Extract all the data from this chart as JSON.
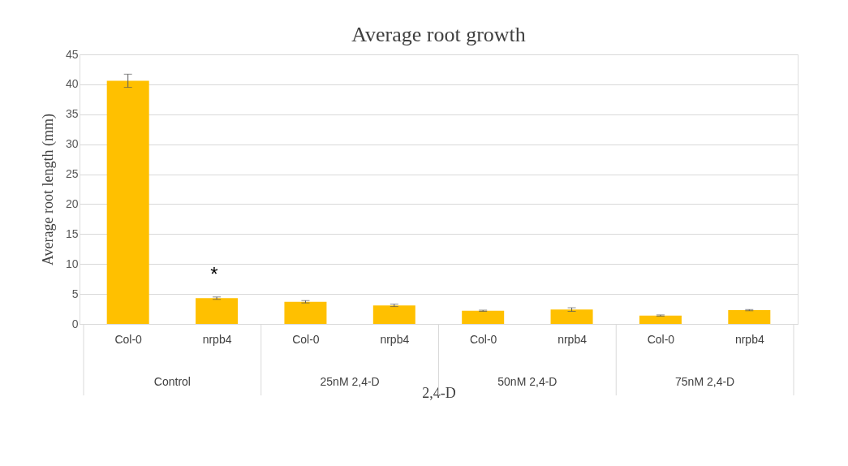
{
  "chart_data": {
    "type": "bar",
    "title": "Average root growth",
    "xlabel": "2,4-D",
    "ylabel": "Average root length (mm)",
    "categories": [
      "Col-0",
      "nrpb4",
      "Col-0",
      "nrpb4",
      "Col-0",
      "nrpb4",
      "Col-0",
      "nrpb4"
    ],
    "values": [
      40.6,
      4.3,
      3.7,
      3.1,
      2.2,
      2.4,
      1.4,
      2.3
    ],
    "errors": [
      1.1,
      0.2,
      0.2,
      0.2,
      0.1,
      0.3,
      0.1,
      0.1
    ],
    "color": "#ffc000",
    "ylim": [
      0,
      45
    ],
    "yticks": [
      0,
      5,
      10,
      15,
      20,
      25,
      30,
      35,
      40,
      45
    ],
    "grid": "y",
    "annotations": [
      "*",
      "Control",
      "25nM 2,4-D",
      "50nM 2,4-D",
      "75nM 2,4-D"
    ]
  }
}
